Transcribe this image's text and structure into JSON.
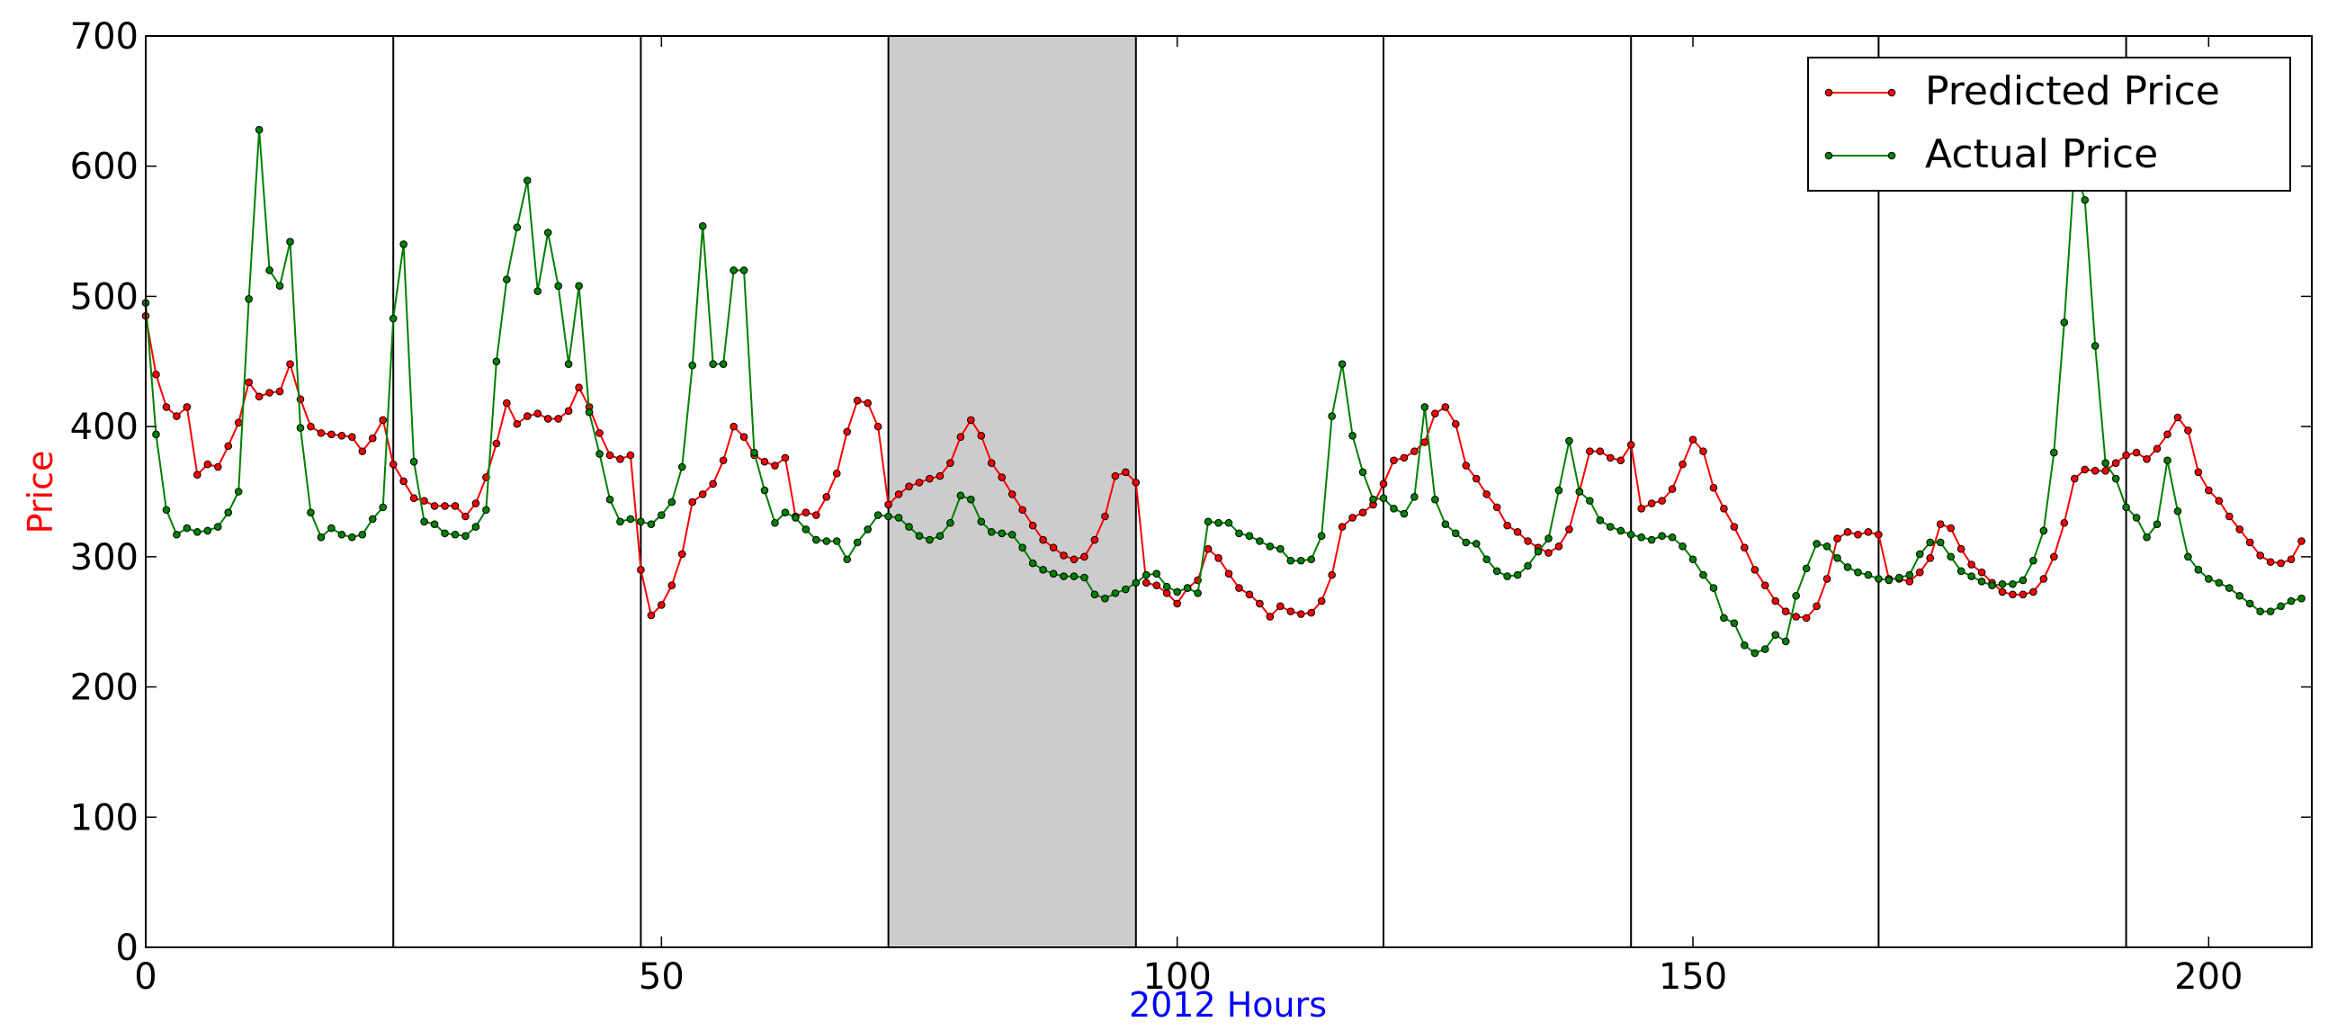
{
  "chart_data": {
    "type": "line",
    "xlabel": "2012 Hours",
    "ylabel": "Price",
    "xlim": [
      0,
      210
    ],
    "ylim": [
      0,
      700
    ],
    "x_ticks": [
      0,
      50,
      100,
      150,
      200
    ],
    "y_ticks": [
      0,
      100,
      200,
      300,
      400,
      500,
      600,
      700
    ],
    "x_tick_labels": [
      "0",
      "50",
      "100",
      "150",
      "200"
    ],
    "y_tick_labels": [
      "0",
      "100",
      "200",
      "300",
      "400",
      "500",
      "600",
      "700"
    ],
    "vertical_lines": [
      24,
      48,
      72,
      96,
      120,
      144,
      168,
      192
    ],
    "shaded_region": [
      72,
      96
    ],
    "grid": false,
    "legend_position": "top-right",
    "colors": {
      "xlabel": "#0000ff",
      "ylabel": "#ff0000",
      "shade": "#cccccc",
      "predicted": "#ff0000",
      "actual": "#008000"
    },
    "series": [
      {
        "name": "Predicted Price",
        "color": "#ff0000",
        "values": [
          485,
          440,
          415,
          408,
          415,
          363,
          371,
          369,
          385,
          403,
          434,
          423,
          426,
          427,
          448,
          421,
          400,
          395,
          394,
          393,
          392,
          381,
          391,
          405,
          371,
          358,
          345,
          343,
          339,
          339,
          339,
          331,
          341,
          361,
          387,
          418,
          402,
          408,
          410,
          406,
          406,
          412,
          430,
          415,
          395,
          378,
          375,
          378,
          290,
          255,
          263,
          278,
          302,
          342,
          348,
          356,
          374,
          400,
          392,
          378,
          373,
          370,
          376,
          331,
          334,
          332,
          346,
          364,
          396,
          420,
          418,
          400,
          340,
          348,
          354,
          357,
          360,
          362,
          372,
          392,
          405,
          393,
          372,
          361,
          348,
          336,
          324,
          313,
          307,
          301,
          298,
          300,
          313,
          331,
          362,
          365,
          357,
          280,
          278,
          272,
          264,
          276,
          282,
          306,
          299,
          287,
          276,
          271,
          264,
          254,
          262,
          258,
          256,
          257,
          266,
          286,
          323,
          330,
          334,
          340,
          356,
          374,
          376,
          381,
          388,
          410,
          415,
          402,
          370,
          360,
          348,
          338,
          324,
          319,
          312,
          307,
          303,
          308,
          321,
          350,
          381,
          381,
          376,
          374,
          386,
          337,
          341,
          343,
          352,
          371,
          390,
          381,
          353,
          337,
          323,
          307,
          290,
          278,
          266,
          258,
          254,
          253,
          262,
          283,
          314,
          319,
          317,
          319,
          317,
          283,
          283,
          281,
          288,
          299,
          325,
          322,
          306,
          294,
          288,
          280,
          273,
          271,
          271,
          273,
          283,
          300,
          326,
          360,
          367,
          366,
          366,
          372,
          378,
          380,
          375,
          383,
          394,
          407,
          397,
          365,
          351,
          343,
          331,
          321,
          311,
          301,
          296,
          295,
          298,
          312
        ]
      },
      {
        "name": "Actual Price",
        "color": "#008000",
        "values": [
          495,
          394,
          336,
          317,
          322,
          319,
          320,
          323,
          334,
          350,
          498,
          628,
          520,
          508,
          542,
          399,
          334,
          315,
          322,
          317,
          315,
          317,
          329,
          338,
          483,
          540,
          373,
          327,
          325,
          318,
          317,
          316,
          323,
          336,
          450,
          513,
          553,
          589,
          504,
          549,
          508,
          448,
          508,
          411,
          379,
          344,
          327,
          329,
          327,
          325,
          332,
          342,
          369,
          447,
          554,
          448,
          448,
          520,
          520,
          380,
          351,
          326,
          334,
          330,
          321,
          313,
          312,
          312,
          298,
          311,
          321,
          332,
          331,
          330,
          323,
          316,
          313,
          316,
          326,
          347,
          344,
          327,
          319,
          318,
          317,
          307,
          295,
          290,
          287,
          285,
          285,
          284,
          271,
          268,
          272,
          275,
          280,
          286,
          287,
          277,
          273,
          276,
          272,
          327,
          326,
          326,
          318,
          316,
          312,
          308,
          306,
          297,
          297,
          298,
          316,
          408,
          448,
          393,
          365,
          344,
          345,
          337,
          333,
          346,
          415,
          344,
          325,
          318,
          311,
          310,
          298,
          289,
          285,
          286,
          293,
          304,
          314,
          351,
          389,
          350,
          343,
          328,
          323,
          320,
          317,
          315,
          313,
          316,
          315,
          308,
          298,
          286,
          276,
          253,
          249,
          232,
          226,
          229,
          240,
          235,
          270,
          291,
          310,
          308,
          299,
          292,
          288,
          286,
          283,
          282,
          284,
          286,
          302,
          311,
          311,
          300,
          289,
          285,
          281,
          278,
          279,
          279,
          282,
          297,
          320,
          380,
          480,
          600,
          574,
          462,
          372,
          360,
          338,
          330,
          315,
          325,
          374,
          335,
          300,
          290,
          283,
          280,
          276,
          270,
          264,
          258,
          258,
          262,
          266,
          268
        ]
      }
    ]
  }
}
